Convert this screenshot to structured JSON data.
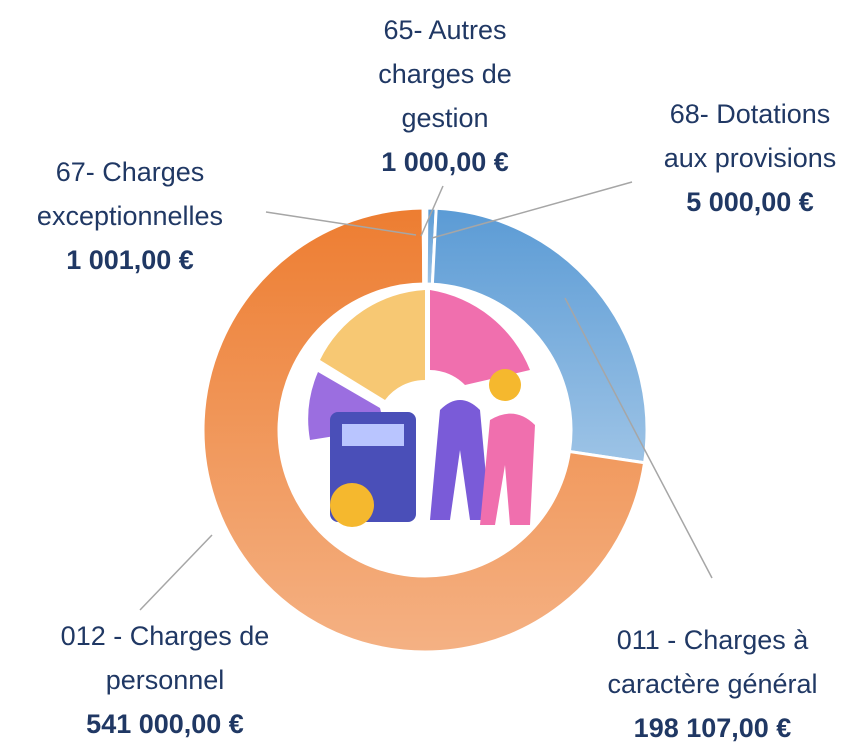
{
  "chart_data": {
    "type": "donut",
    "categories": [
      "65- Autres charges de gestion",
      "68- Dotations aux provisions",
      "011 - Charges à caractère général",
      "012 - Charges de personnel",
      "67- Charges exceptionnelles"
    ],
    "values": [
      1000,
      5000,
      198107,
      541000,
      1001
    ],
    "value_labels": [
      "1 000,00 €",
      "5 000,00 €",
      "198 107,00 €",
      "541 000,00 €",
      "1 001,00 €"
    ],
    "colors": [
      "#2f5597",
      "#5b9bd5",
      "#5b9bd5",
      "#ed7d31",
      "#ed7d31"
    ]
  }
}
